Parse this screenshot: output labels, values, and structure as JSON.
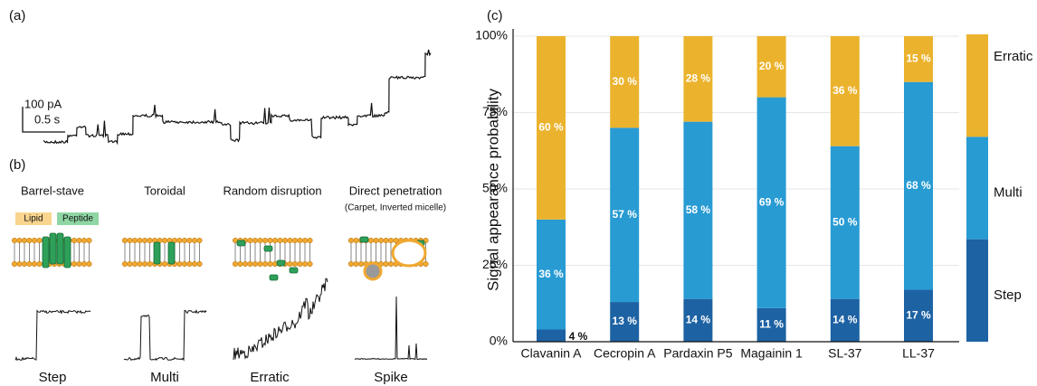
{
  "figure": {
    "panel_a": "(a)",
    "panel_b": "(b)",
    "panel_c": "(c)",
    "scale_current": "100 pA",
    "scale_time": "0.5 s",
    "mechanisms": [
      "Barrel-stave",
      "Toroidal",
      "Random disruption",
      "Direct  penetration"
    ],
    "mechanism_note": "(Carpet, Inverted micelle)",
    "legend_lipid": "Lipid",
    "legend_peptide": "Peptide",
    "signals": [
      "Step",
      "Multi",
      "Erratic",
      "Spike"
    ]
  },
  "chart_data": {
    "type": "stacked-bar",
    "y_label": "Signal appearance probability",
    "categories": [
      "Clavanin A",
      "Cecropin A",
      "Pardaxin P5",
      "Magainin 1",
      "SL-37",
      "LL-37"
    ],
    "series": [
      {
        "name": "Step",
        "color": "#1d62a3",
        "values": [
          4,
          13,
          14,
          11,
          14,
          17
        ],
        "value_labels": [
          "4 %",
          "13 %",
          "14 %",
          "11 %",
          "14 %",
          "17 %"
        ]
      },
      {
        "name": "Multi",
        "color": "#289bd3",
        "values": [
          36,
          57,
          58,
          69,
          50,
          68
        ],
        "value_labels": [
          "36 %",
          "57 %",
          "58 %",
          "69 %",
          "50 %",
          "68 %"
        ]
      },
      {
        "name": "Erratic",
        "color": "#ebb32d",
        "values": [
          60,
          30,
          28,
          20,
          36,
          15
        ],
        "value_labels": [
          "60 %",
          "30 %",
          "28 %",
          "20 %",
          "36 %",
          "15 %"
        ]
      }
    ],
    "ylim": [
      0,
      100
    ],
    "yticks": [
      {
        "value": 0,
        "label": "0%"
      },
      {
        "value": 25,
        "label": "25%"
      },
      {
        "value": 50,
        "label": "50%"
      },
      {
        "value": 75,
        "label": "75%"
      },
      {
        "value": 100,
        "label": "100%"
      }
    ],
    "grid": true,
    "legend": "right"
  }
}
